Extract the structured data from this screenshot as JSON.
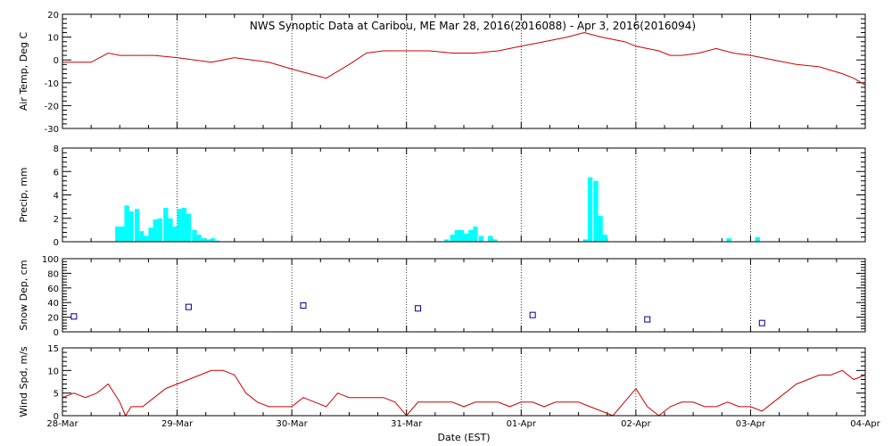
{
  "title": "NWS Synoptic Data at Caribou, ME   Mar 28, 2016(2016088) - Apr  3, 2016(2016094)",
  "xlabel": "Date (EST)",
  "x_tick_labels": [
    "28-Mar",
    "29-Mar",
    "30-Mar",
    "31-Mar",
    "01-Apr",
    "02-Apr",
    "03-Apr",
    "04-Apr"
  ],
  "colors": {
    "air_temp": "#cc0000",
    "precip": "#00ffff",
    "snow_depth": "#00008b",
    "wind_speed": "#cc0000",
    "grid": "#000000"
  },
  "chart_data": [
    {
      "type": "line",
      "ylabel": "Air Temp, Deg C",
      "xlim": [
        0,
        7
      ],
      "ylim": [
        -30,
        20
      ],
      "yticks": [
        -30,
        -20,
        -10,
        0,
        10,
        20
      ],
      "grid": "vertical dotted at each day",
      "x": [
        0.0,
        0.25,
        0.4,
        0.5,
        0.65,
        0.8,
        1.0,
        1.15,
        1.3,
        1.5,
        1.65,
        1.8,
        2.0,
        2.15,
        2.3,
        2.5,
        2.65,
        2.8,
        2.9,
        3.0,
        3.2,
        3.4,
        3.6,
        3.8,
        4.0,
        4.2,
        4.4,
        4.55,
        4.7,
        4.9,
        5.0,
        5.1,
        5.2,
        5.3,
        5.4,
        5.55,
        5.7,
        5.85,
        6.0,
        6.1,
        6.2,
        6.4,
        6.6,
        6.8,
        6.9,
        7.0
      ],
      "y": [
        -1,
        -1,
        3,
        2,
        2,
        2,
        1,
        0,
        -1,
        1,
        0,
        -1,
        -4,
        -6,
        -8,
        -2,
        3,
        4,
        4,
        4,
        4,
        3,
        3,
        4,
        6,
        8,
        10,
        12,
        10,
        8,
        6,
        5,
        4,
        2,
        2,
        3,
        5,
        3,
        2,
        1,
        0,
        -2,
        -3,
        -6,
        -8,
        -11
      ]
    },
    {
      "type": "bar",
      "ylabel": "Precip, mm",
      "xlim": [
        0,
        7
      ],
      "ylim": [
        0,
        8
      ],
      "yticks": [
        0,
        2,
        4,
        6,
        8
      ],
      "bar_width_days": 0.0417,
      "x": [
        0.46,
        0.5,
        0.54,
        0.58,
        0.63,
        0.67,
        0.71,
        0.75,
        0.79,
        0.83,
        0.88,
        0.92,
        0.96,
        1.0,
        1.04,
        1.08,
        1.13,
        1.17,
        1.21,
        1.25,
        1.29,
        1.33,
        1.38,
        3.33,
        3.38,
        3.42,
        3.46,
        3.5,
        3.54,
        3.58,
        3.63,
        3.71,
        3.75,
        4.54,
        4.58,
        4.63,
        4.67,
        4.71,
        5.79,
        6.04
      ],
      "values": [
        1.3,
        1.3,
        3.1,
        2.6,
        2.8,
        0.9,
        0.5,
        1.2,
        1.9,
        2.0,
        2.9,
        2.0,
        1.3,
        2.8,
        2.9,
        2.4,
        1.0,
        0.6,
        0.3,
        0.2,
        0.3,
        0.1,
        0.0,
        0.2,
        0.6,
        1.0,
        1.0,
        0.7,
        1.0,
        1.3,
        0.5,
        0.5,
        0.2,
        0.2,
        5.5,
        5.2,
        2.2,
        0.6,
        0.3,
        0.4
      ]
    },
    {
      "type": "scatter",
      "ylabel": "Snow Dep, cm",
      "xlim": [
        0,
        7
      ],
      "ylim": [
        0,
        100
      ],
      "yticks": [
        0,
        20,
        40,
        60,
        80,
        100
      ],
      "x": [
        0.1,
        1.1,
        2.1,
        3.1,
        4.1,
        5.1,
        6.1
      ],
      "y": [
        21,
        34,
        36,
        32,
        23,
        17,
        12
      ]
    },
    {
      "type": "line",
      "ylabel": "Wind Spd, m/s",
      "xlim": [
        0,
        7
      ],
      "ylim": [
        0,
        15
      ],
      "yticks": [
        0,
        5,
        10,
        15
      ],
      "x": [
        0.0,
        0.1,
        0.2,
        0.3,
        0.4,
        0.5,
        0.55,
        0.6,
        0.7,
        0.8,
        0.9,
        1.0,
        1.1,
        1.2,
        1.3,
        1.4,
        1.5,
        1.6,
        1.7,
        1.8,
        1.9,
        2.0,
        2.1,
        2.2,
        2.3,
        2.4,
        2.5,
        2.6,
        2.7,
        2.8,
        2.9,
        3.0,
        3.1,
        3.2,
        3.3,
        3.4,
        3.5,
        3.6,
        3.7,
        3.8,
        3.9,
        4.0,
        4.1,
        4.2,
        4.3,
        4.4,
        4.5,
        4.6,
        4.7,
        4.8,
        4.9,
        5.0,
        5.1,
        5.2,
        5.3,
        5.4,
        5.5,
        5.6,
        5.7,
        5.8,
        5.9,
        6.0,
        6.1,
        6.2,
        6.3,
        6.4,
        6.5,
        6.6,
        6.7,
        6.8,
        6.9,
        7.0
      ],
      "y": [
        4,
        5,
        4,
        5,
        7,
        3,
        0,
        2,
        2,
        4,
        6,
        7,
        8,
        9,
        10,
        10,
        9,
        5,
        3,
        2,
        2,
        2,
        4,
        3,
        2,
        5,
        4,
        4,
        4,
        4,
        3,
        0,
        3,
        3,
        3,
        3,
        2,
        3,
        3,
        3,
        2,
        3,
        3,
        2,
        3,
        3,
        3,
        2,
        1,
        0,
        3,
        6,
        2,
        0,
        2,
        3,
        3,
        2,
        2,
        3,
        2,
        2,
        1,
        3,
        5,
        7,
        8,
        9,
        9,
        10,
        8,
        9
      ]
    }
  ]
}
